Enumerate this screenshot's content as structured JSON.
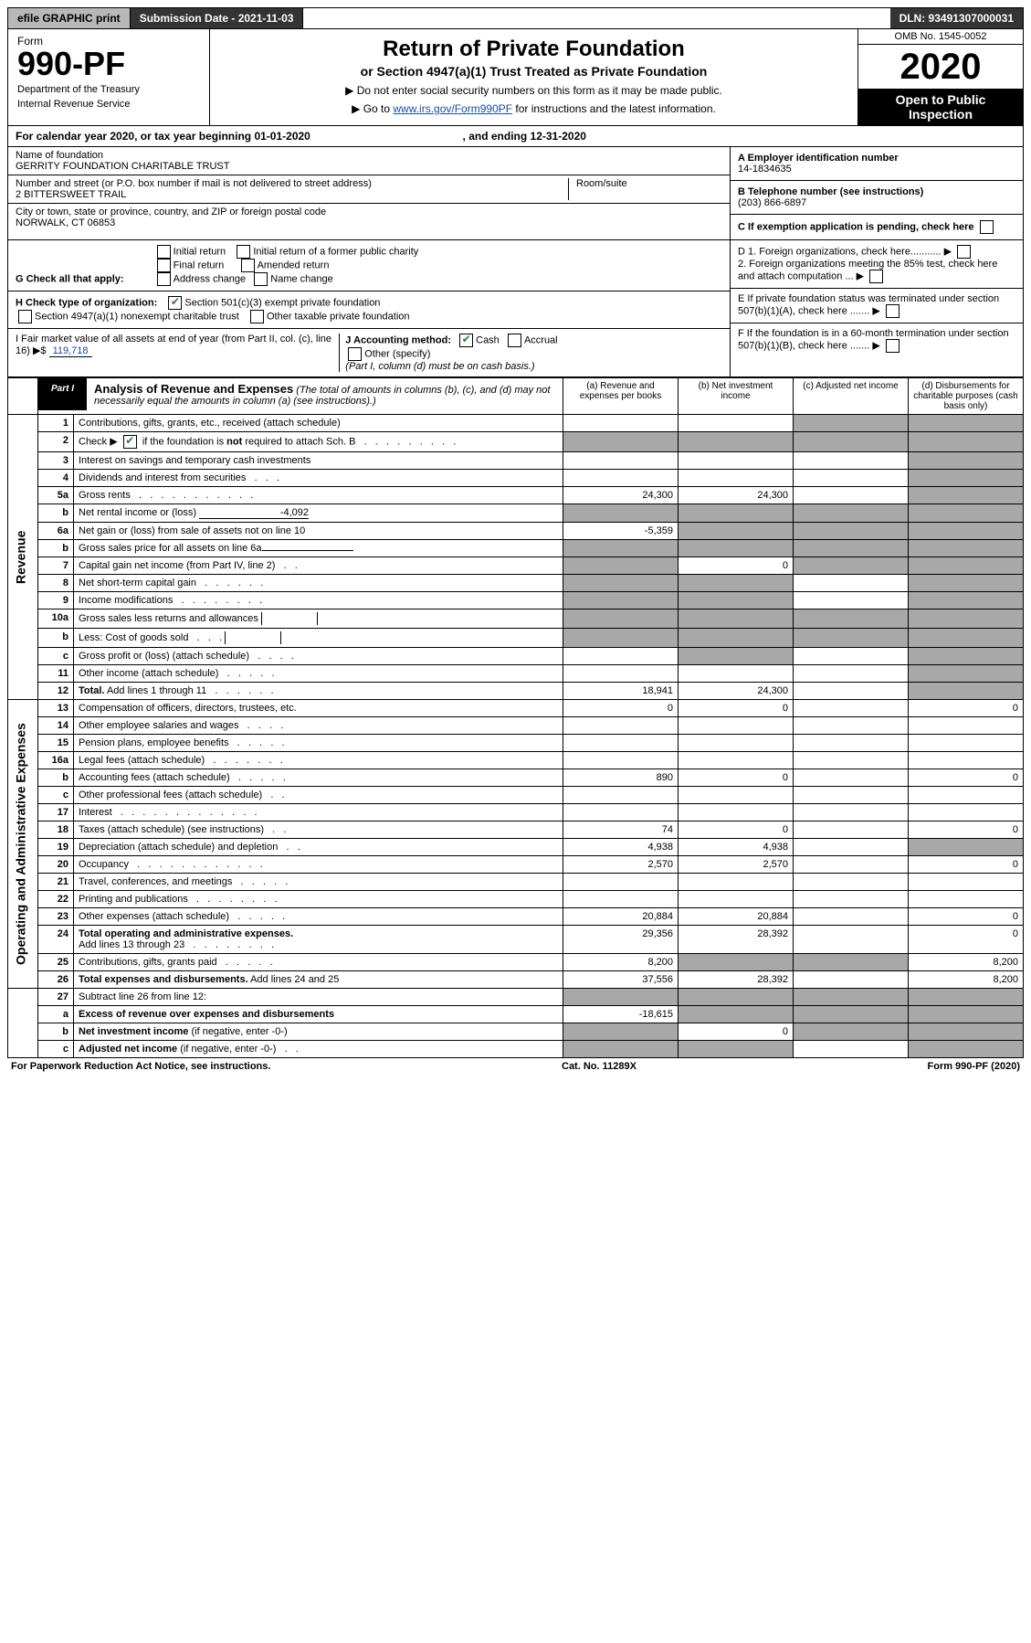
{
  "topbar": {
    "efile": "efile GRAPHIC print",
    "sub_date_label": "Submission Date - 2021-11-03",
    "dln": "DLN: 93491307000031"
  },
  "header": {
    "form_label": "Form",
    "form_num": "990-PF",
    "dept": "Department of the Treasury",
    "irs": "Internal Revenue Service",
    "title": "Return of Private Foundation",
    "subtitle": "or Section 4947(a)(1) Trust Treated as Private Foundation",
    "note1": "▶ Do not enter social security numbers on this form as it may be made public.",
    "note2_pre": "▶ Go to ",
    "note2_link": "www.irs.gov/Form990PF",
    "note2_post": " for instructions and the latest information.",
    "omb": "OMB No. 1545-0052",
    "year": "2020",
    "open": "Open to Public Inspection"
  },
  "calendar": {
    "text_pre": "For calendar year 2020, or tax year beginning ",
    "begin": "01-01-2020",
    "mid": " , and ending ",
    "end": "12-31-2020"
  },
  "entity": {
    "name_label": "Name of foundation",
    "name": "GERRITY FOUNDATION CHARITABLE TRUST",
    "addr_label": "Number and street (or P.O. box number if mail is not delivered to street address)",
    "addr": "2 BITTERSWEET TRAIL",
    "room_label": "Room/suite",
    "city_label": "City or town, state or province, country, and ZIP or foreign postal code",
    "city": "NORWALK, CT  06853",
    "a_label": "A Employer identification number",
    "a_val": "14-1834635",
    "b_label": "B Telephone number (see instructions)",
    "b_val": "(203) 866-6897",
    "c_label": "C If exemption application is pending, check here"
  },
  "checks": {
    "g_label": "G Check all that apply:",
    "g_items": [
      "Initial return",
      "Initial return of a former public charity",
      "Final return",
      "Amended return",
      "Address change",
      "Name change"
    ],
    "h_label": "H Check type of organization:",
    "h_501c3": "Section 501(c)(3) exempt private foundation",
    "h_4947": "Section 4947(a)(1) nonexempt charitable trust",
    "h_other": "Other taxable private foundation",
    "i_label": "I Fair market value of all assets at end of year (from Part II, col. (c), line 16) ▶$ ",
    "i_val": "119,718",
    "j_label": "J Accounting method:",
    "j_cash": "Cash",
    "j_accrual": "Accrual",
    "j_other": "Other (specify)",
    "j_note": "(Part I, column (d) must be on cash basis.)",
    "d1": "D 1. Foreign organizations, check here...........",
    "d2": "2. Foreign organizations meeting the 85% test, check here and attach computation ...",
    "e": "E If private foundation status was terminated under section 507(b)(1)(A), check here .......",
    "f": "F If the foundation is in a 60-month termination under section 507(b)(1)(B), check here .......",
    "arrow": "▶"
  },
  "part1": {
    "tag": "Part I",
    "title": "Analysis of Revenue and Expenses",
    "title_note": "(The total of amounts in columns (b), (c), and (d) may not necessarily equal the amounts in column (a) (see instructions).)",
    "col_a": "(a) Revenue and expenses per books",
    "col_b": "(b) Net investment income",
    "col_c": "(c) Adjusted net income",
    "col_d": "(d) Disbursements for charitable purposes (cash basis only)"
  },
  "sections": {
    "revenue": "Revenue",
    "opex": "Operating and Administrative Expenses"
  },
  "rows": [
    {
      "n": "1",
      "d": "shade",
      "a": "",
      "b": "",
      "c": "shade"
    },
    {
      "n": "2",
      "d": "shade",
      "a": "shade",
      "b": "shade",
      "c": "shade",
      "noval": true,
      "bold_not": true
    },
    {
      "n": "3",
      "d": "shade",
      "a": "",
      "b": "",
      "c": ""
    },
    {
      "n": "4",
      "d": "shade",
      "a": "",
      "b": "",
      "c": ""
    },
    {
      "n": "5a",
      "d": "shade",
      "a": "24,300",
      "b": "24,300",
      "c": ""
    },
    {
      "n": "b",
      "d": "shade",
      "a": "shade",
      "b": "shade",
      "c": "shade",
      "inline": "-4,092"
    },
    {
      "n": "6a",
      "d": "shade",
      "a": "-5,359",
      "b": "shade",
      "c": "shade"
    },
    {
      "n": "b",
      "d": "shade",
      "a": "shade",
      "b": "shade",
      "c": "shade",
      "inline": ""
    },
    {
      "n": "7",
      "d": "shade",
      "a": "shade",
      "b": "0",
      "c": "shade"
    },
    {
      "n": "8",
      "d": "shade",
      "a": "shade",
      "b": "shade",
      "c": ""
    },
    {
      "n": "9",
      "d": "shade",
      "a": "shade",
      "b": "shade",
      "c": ""
    },
    {
      "n": "10a",
      "d": "shade",
      "a": "shade",
      "b": "shade",
      "c": "shade",
      "inline": ""
    },
    {
      "n": "b",
      "d": "shade",
      "a": "shade",
      "b": "shade",
      "c": "shade",
      "inline": ""
    },
    {
      "n": "c",
      "d": "shade",
      "a": "",
      "b": "shade",
      "c": ""
    },
    {
      "n": "11",
      "d": "shade",
      "a": "",
      "b": "",
      "c": ""
    },
    {
      "n": "12",
      "d": "shade",
      "a": "18,941",
      "b": "24,300",
      "c": "",
      "bold": true
    }
  ],
  "rows2": [
    {
      "n": "13",
      "d": "0",
      "a": "0",
      "b": "0",
      "c": ""
    },
    {
      "n": "14",
      "d": "",
      "a": "",
      "b": "",
      "c": ""
    },
    {
      "n": "15",
      "d": "",
      "a": "",
      "b": "",
      "c": ""
    },
    {
      "n": "16a",
      "d": "",
      "a": "",
      "b": "",
      "c": ""
    },
    {
      "n": "b",
      "d": "0",
      "a": "890",
      "b": "0",
      "c": ""
    },
    {
      "n": "c",
      "d": "",
      "a": "",
      "b": "",
      "c": ""
    },
    {
      "n": "17",
      "d": "",
      "a": "",
      "b": "",
      "c": ""
    },
    {
      "n": "18",
      "d": "0",
      "a": "74",
      "b": "0",
      "c": ""
    },
    {
      "n": "19",
      "d": "shade",
      "a": "4,938",
      "b": "4,938",
      "c": ""
    },
    {
      "n": "20",
      "d": "0",
      "a": "2,570",
      "b": "2,570",
      "c": ""
    },
    {
      "n": "21",
      "d": "",
      "a": "",
      "b": "",
      "c": ""
    },
    {
      "n": "22",
      "d": "",
      "a": "",
      "b": "",
      "c": ""
    },
    {
      "n": "23",
      "d": "0",
      "a": "20,884",
      "b": "20,884",
      "c": ""
    },
    {
      "n": "24",
      "d": "0",
      "a": "29,356",
      "b": "28,392",
      "c": "",
      "bold": true
    },
    {
      "n": "25",
      "d": "8,200",
      "a": "8,200",
      "b": "shade",
      "c": "shade"
    },
    {
      "n": "26",
      "d": "8,200",
      "a": "37,556",
      "b": "28,392",
      "c": "",
      "bold": true
    }
  ],
  "rows3": [
    {
      "n": "27",
      "d": "shade",
      "a": "shade",
      "b": "shade",
      "c": "shade"
    },
    {
      "n": "a",
      "d": "shade",
      "a": "-18,615",
      "b": "shade",
      "c": "shade",
      "bold": true
    },
    {
      "n": "b",
      "d": "shade",
      "a": "shade",
      "b": "0",
      "c": "shade",
      "bold": true
    },
    {
      "n": "c",
      "d": "shade",
      "a": "shade",
      "b": "shade",
      "c": "",
      "bold": true
    }
  ],
  "footer": {
    "left": "For Paperwork Reduction Act Notice, see instructions.",
    "mid": "Cat. No. 11289X",
    "right": "Form 990-PF (2020)"
  }
}
